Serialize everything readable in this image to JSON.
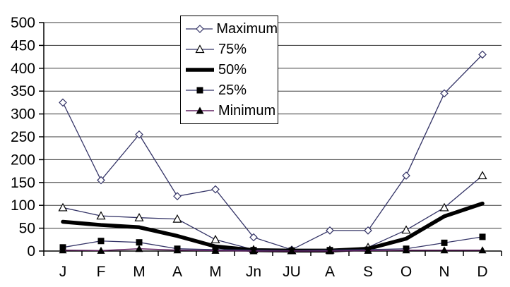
{
  "chart_data": {
    "type": "line",
    "title": "",
    "xlabel": "",
    "ylabel": "",
    "ylim": [
      0,
      500
    ],
    "ytick_step": 50,
    "y_tick_labels": [
      "0",
      "50",
      "100",
      "150",
      "200",
      "250",
      "300",
      "350",
      "400",
      "450",
      "500"
    ],
    "grid": "horizontal",
    "legend_position": "floating-top-center",
    "categories": [
      "J",
      "F",
      "M",
      "A",
      "M",
      "Jn",
      "JU",
      "A",
      "S",
      "O",
      "N",
      "D"
    ],
    "series": [
      {
        "name": "Maximum",
        "marker": "open-diamond",
        "color": "#333366",
        "line_width": 1.3,
        "values": [
          325,
          155,
          255,
          120,
          135,
          30,
          3,
          45,
          45,
          165,
          345,
          430
        ]
      },
      {
        "name": "75%",
        "marker": "open-triangle",
        "color": "#333366",
        "line_width": 1.3,
        "values": [
          95,
          77,
          73,
          70,
          25,
          3,
          1,
          2,
          8,
          46,
          95,
          165
        ]
      },
      {
        "name": "50%",
        "marker": "none",
        "color": "#000000",
        "line_width": 5.5,
        "values": [
          64,
          57,
          52,
          33,
          10,
          2,
          1,
          1,
          5,
          27,
          76,
          104
        ]
      },
      {
        "name": "25%",
        "marker": "filled-square",
        "color": "#333366",
        "line_width": 1.3,
        "values": [
          8,
          22,
          19,
          5,
          3,
          2,
          1,
          2,
          3,
          5,
          18,
          31
        ]
      },
      {
        "name": "Minimum",
        "marker": "filled-triangle",
        "color": "#602060",
        "line_width": 1.5,
        "values": [
          2,
          1,
          5,
          2,
          1,
          0,
          0,
          0,
          1,
          2,
          2,
          2
        ]
      }
    ],
    "colors": {
      "grid": "#3a3a3a",
      "axis": "#000000",
      "text": "#000000",
      "marker_fill_dark": "#000000",
      "marker_fill_open": "#ffffff",
      "background": "#ffffff"
    }
  }
}
